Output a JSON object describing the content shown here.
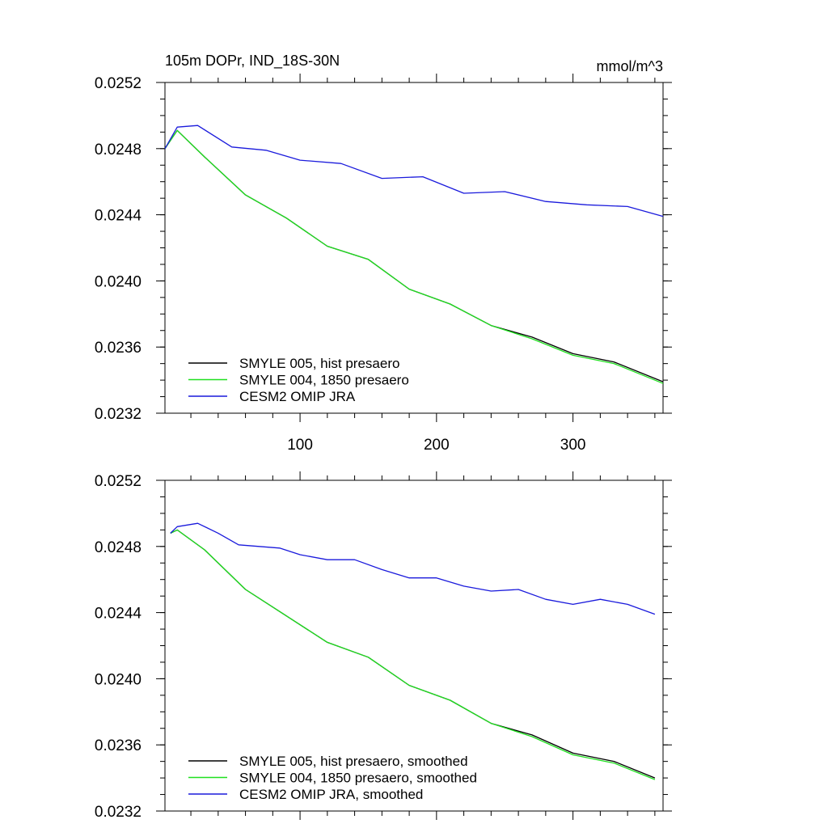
{
  "title": "105m DOPr, IND_18S-30N",
  "units": "mmol/m^3",
  "colors": {
    "black": "#000000",
    "green": "#1fe01f",
    "blue": "#1a1adc"
  },
  "chart_data": [
    {
      "type": "line",
      "title": "105m DOPr, IND_18S-30N",
      "units": "mmol/m^3",
      "xlim": [
        1,
        366
      ],
      "ylim": [
        0.0232,
        0.0252
      ],
      "xticks": [
        100,
        200,
        300
      ],
      "xtick_labels": [
        "100",
        "200",
        "300"
      ],
      "yticks": [
        0.0232,
        0.0236,
        0.024,
        0.0244,
        0.0248,
        0.0252
      ],
      "ytick_labels": [
        "0.0232",
        "0.0236",
        "0.0240",
        "0.0244",
        "0.0248",
        "0.0252"
      ],
      "xlabel": "",
      "ylabel": "",
      "grid": false,
      "legend": "bottom-left",
      "series": [
        {
          "name": "SMYLE 005, hist presaero",
          "color": "black",
          "x": [
            1,
            10,
            30,
            60,
            90,
            120,
            150,
            180,
            210,
            240,
            270,
            300,
            330,
            366
          ],
          "y": [
            0.0248,
            0.02491,
            0.02475,
            0.02452,
            0.02438,
            0.02421,
            0.02413,
            0.02395,
            0.02386,
            0.02373,
            0.02366,
            0.02356,
            0.02351,
            0.02339
          ]
        },
        {
          "name": "SMYLE 004, 1850 presaero",
          "color": "green",
          "x": [
            1,
            10,
            30,
            60,
            90,
            120,
            150,
            180,
            210,
            240,
            270,
            300,
            330,
            366
          ],
          "y": [
            0.0248,
            0.02491,
            0.02475,
            0.02452,
            0.02438,
            0.02421,
            0.02413,
            0.02395,
            0.02386,
            0.02373,
            0.02365,
            0.02355,
            0.0235,
            0.02338
          ]
        },
        {
          "name": "CESM2 OMIP JRA",
          "color": "blue",
          "x": [
            1,
            10,
            25,
            50,
            75,
            100,
            130,
            160,
            190,
            220,
            250,
            280,
            310,
            340,
            366
          ],
          "y": [
            0.0248,
            0.02493,
            0.02494,
            0.02481,
            0.02479,
            0.02473,
            0.02471,
            0.02462,
            0.02463,
            0.02453,
            0.02454,
            0.02448,
            0.02446,
            0.02445,
            0.02439
          ]
        }
      ]
    },
    {
      "type": "line",
      "xlim": [
        1,
        366
      ],
      "ylim": [
        0.0232,
        0.0252
      ],
      "xticks": [
        100,
        200,
        300
      ],
      "xtick_labels": [],
      "yticks": [
        0.0232,
        0.0236,
        0.024,
        0.0244,
        0.0248,
        0.0252
      ],
      "ytick_labels": [
        "0.0232",
        "0.0236",
        "0.0240",
        "0.0244",
        "0.0248",
        "0.0252"
      ],
      "xlabel": "",
      "ylabel": "",
      "grid": false,
      "legend": "bottom-left",
      "series": [
        {
          "name": "SMYLE 005, hist presaero, smoothed",
          "color": "black",
          "x": [
            5,
            10,
            30,
            60,
            90,
            120,
            150,
            180,
            210,
            240,
            270,
            300,
            330,
            360
          ],
          "y": [
            0.02488,
            0.0249,
            0.02478,
            0.02454,
            0.02438,
            0.02422,
            0.02413,
            0.02396,
            0.02387,
            0.02373,
            0.02366,
            0.02355,
            0.0235,
            0.0234
          ]
        },
        {
          "name": "SMYLE 004, 1850 presaero, smoothed",
          "color": "green",
          "x": [
            5,
            10,
            30,
            60,
            90,
            120,
            150,
            180,
            210,
            240,
            270,
            300,
            330,
            360
          ],
          "y": [
            0.02488,
            0.0249,
            0.02478,
            0.02454,
            0.02438,
            0.02422,
            0.02413,
            0.02396,
            0.02387,
            0.02373,
            0.02365,
            0.02354,
            0.02349,
            0.02339
          ]
        },
        {
          "name": "CESM2 OMIP JRA, smoothed",
          "color": "blue",
          "x": [
            5,
            10,
            25,
            40,
            55,
            70,
            85,
            100,
            120,
            140,
            160,
            180,
            200,
            220,
            240,
            260,
            280,
            300,
            320,
            340,
            360
          ],
          "y": [
            0.02488,
            0.02492,
            0.02494,
            0.02488,
            0.02481,
            0.0248,
            0.02479,
            0.02475,
            0.02472,
            0.02472,
            0.02466,
            0.02461,
            0.02461,
            0.02456,
            0.02453,
            0.02454,
            0.02448,
            0.02445,
            0.02448,
            0.02445,
            0.02439
          ]
        }
      ]
    }
  ]
}
